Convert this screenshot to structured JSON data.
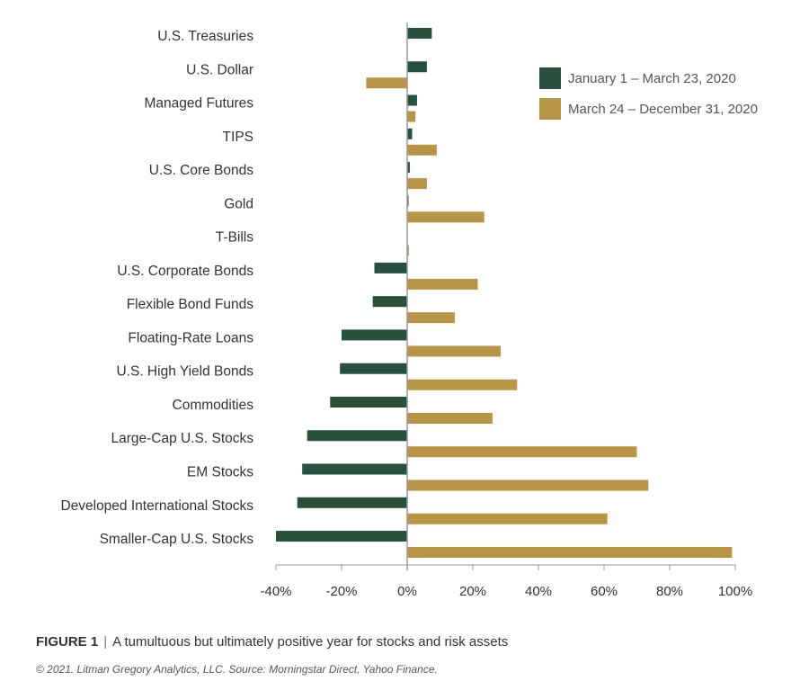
{
  "colors": {
    "series1": "#27503f",
    "series2": "#b89545",
    "axis": "#999999"
  },
  "chart_data": {
    "type": "bar",
    "orientation": "horizontal",
    "categories": [
      "U.S. Treasuries",
      "U.S. Dollar",
      "Managed Futures",
      "TIPS",
      "U.S. Core Bonds",
      "Gold",
      "T-Bills",
      "U.S. Corporate Bonds",
      "Flexible Bond Funds",
      "Floating-Rate Loans",
      "U.S. High Yield Bonds",
      "Commodities",
      "Large-Cap U.S. Stocks",
      "EM Stocks",
      "Developed International Stocks",
      "Smaller-Cap U.S. Stocks"
    ],
    "series": [
      {
        "name": "January 1 – March 23, 2020",
        "values": [
          7.5,
          6,
          3,
          1.5,
          0.8,
          0.3,
          0,
          -10,
          -10.5,
          -20,
          -20.5,
          -23.5,
          -30.5,
          -32,
          -33.5,
          -40
        ]
      },
      {
        "name": "March 24 – December 31, 2020",
        "values": [
          0,
          -12.5,
          2.5,
          9,
          6,
          23.5,
          0.5,
          21.5,
          14.5,
          28.5,
          33.5,
          26,
          70,
          73.5,
          61,
          99
        ]
      }
    ],
    "xlim": [
      -40,
      100
    ],
    "xticks": [
      "-40%",
      "-20%",
      "0%",
      "20%",
      "40%",
      "60%",
      "80%",
      "100%"
    ],
    "legend_position": "top-right"
  },
  "caption": {
    "figure_label": "FIGURE 1",
    "separator": "|",
    "text": "A tumultuous but ultimately positive year for stocks and risk assets"
  },
  "source": "© 2021.  Litman Gregory Analytics, LLC.  Source: Morningstar Direct, Yahoo Finance."
}
